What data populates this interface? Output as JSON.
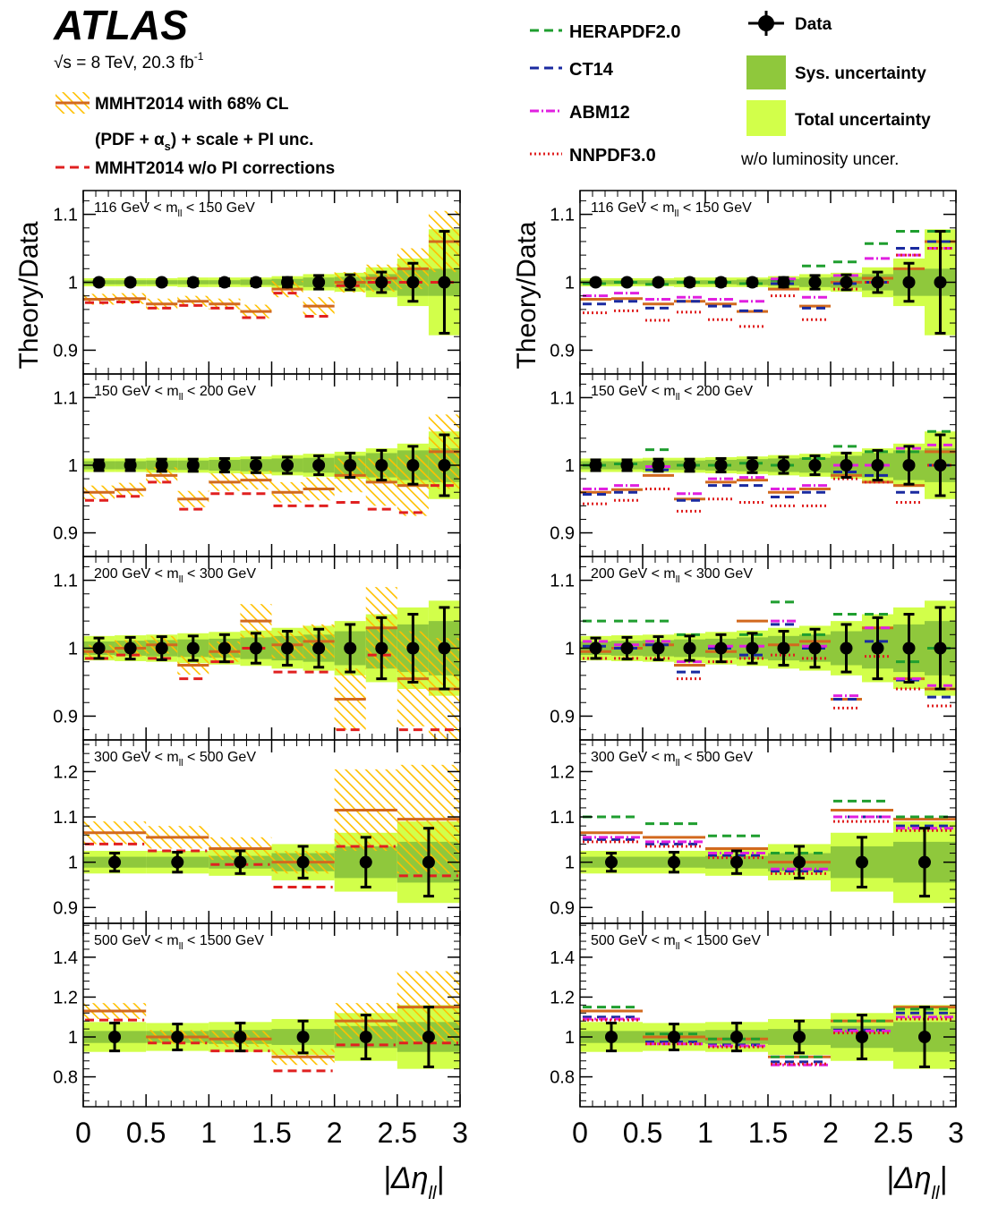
{
  "header": {
    "experiment": "ATLAS",
    "energy": "√s = 8 TeV, 20.3 fb",
    "energy_sup": "-1",
    "luminosity_note": "w/o luminosity uncer."
  },
  "legend_left": [
    {
      "label": "MMHT2014 with 68% CL",
      "style": "hatched-band"
    },
    {
      "label": "(PDF + α",
      "sub": "s",
      "tail": ") + scale + PI unc.",
      "style": "none"
    },
    {
      "label": "MMHT2014 w/o PI corrections",
      "style": "red-dashed"
    }
  ],
  "legend_right": {
    "lines": [
      {
        "label": "HERAPDF2.0",
        "color": "#1f9e2f",
        "dash": "10,6"
      },
      {
        "label": "CT14",
        "color": "#1a2aa0",
        "dash": "10,6"
      },
      {
        "label": "ABM12",
        "color": "#e020e0",
        "dash": "10,3,2,3"
      },
      {
        "label": "NNPDF3.0",
        "color": "#e02020",
        "dash": "2,3"
      }
    ],
    "boxes": [
      {
        "label": "Data",
        "kind": "marker"
      },
      {
        "label": "Sys. uncertainty",
        "color": "#8fc83c"
      },
      {
        "label": "Total uncertainty",
        "color": "#d2ff4a"
      }
    ]
  },
  "colors": {
    "mmht": "#d2691e",
    "hatch": "#ffc000",
    "red": "#e02020",
    "sys": "#8fc83c",
    "tot": "#d2ff4a",
    "data": "#000000"
  },
  "chart_data": {
    "type": "ratio-panels",
    "xlabel": "|Δη",
    "xlabel_sub": "ll",
    "ylabel": "Theory/Data",
    "xlim": [
      0,
      3
    ],
    "x_ticks": [
      "0",
      "0.5",
      "1",
      "1.5",
      "2",
      "2.5",
      "3"
    ],
    "x_tick_values": [
      0,
      0.5,
      1,
      1.5,
      2,
      2.5,
      3
    ],
    "panels": [
      {
        "label": "116 GeV < m",
        "label_sub": "ll",
        "label_tail": " < 150 GeV",
        "ylim": [
          0.865,
          1.135
        ],
        "y_ticks": [
          "0.9",
          "1",
          "1.1"
        ],
        "y_tick_values": [
          0.9,
          1.0,
          1.1
        ],
        "bins": [
          0,
          0.25,
          0.5,
          0.75,
          1,
          1.25,
          1.5,
          1.75,
          2,
          2.25,
          2.5,
          2.75,
          3
        ],
        "data_err": [
          0.004,
          0.004,
          0.004,
          0.005,
          0.005,
          0.005,
          0.007,
          0.01,
          0.011,
          0.015,
          0.028,
          0.075
        ],
        "sys": [
          0.003,
          0.003,
          0.003,
          0.003,
          0.003,
          0.004,
          0.005,
          0.007,
          0.008,
          0.012,
          0.02,
          0.02
        ],
        "tot": [
          0.006,
          0.006,
          0.006,
          0.007,
          0.007,
          0.007,
          0.009,
          0.012,
          0.014,
          0.022,
          0.035,
          0.078
        ],
        "mmht": [
          0.975,
          0.976,
          0.968,
          0.972,
          0.968,
          0.957,
          0.99,
          0.965,
          1.0,
          1.006,
          1.02,
          1.06
        ],
        "mmht_err": [
          0.008,
          0.008,
          0.008,
          0.008,
          0.008,
          0.01,
          0.012,
          0.013,
          0.015,
          0.02,
          0.03,
          0.045
        ],
        "red": [
          0.97,
          0.971,
          0.962,
          0.966,
          0.962,
          0.948,
          0.984,
          0.95,
          0.995,
          1.0,
          1.0,
          1.0
        ],
        "left_panel_only": true,
        "herapdf": [
          0.998,
          1.0,
          0.997,
          1.0,
          1.0,
          0.998,
          1.003,
          1.024,
          1.03,
          1.057,
          1.075,
          1.075
        ],
        "ct14": [
          0.968,
          0.972,
          0.962,
          0.972,
          0.965,
          0.958,
          0.998,
          0.962,
          0.998,
          1.0,
          1.05,
          1.06
        ],
        "abm12": [
          0.98,
          0.984,
          0.975,
          0.978,
          0.975,
          0.972,
          1.005,
          0.978,
          1.01,
          1.035,
          1.04,
          1.05
        ],
        "nnpdf": [
          0.955,
          0.958,
          0.944,
          0.956,
          0.945,
          0.935,
          0.98,
          0.945,
          0.99,
          1.0,
          1.04,
          1.05
        ]
      },
      {
        "label": "150 GeV < m",
        "label_sub": "ll",
        "label_tail": " < 200 GeV",
        "ylim": [
          0.865,
          1.135
        ],
        "y_ticks": [
          "0.9",
          "1",
          "1.1"
        ],
        "y_tick_values": [
          0.9,
          1.0,
          1.1
        ],
        "bins": [
          0,
          0.25,
          0.5,
          0.75,
          1,
          1.25,
          1.5,
          1.75,
          2,
          2.25,
          2.5,
          2.75,
          3
        ],
        "data_err": [
          0.008,
          0.008,
          0.009,
          0.009,
          0.01,
          0.011,
          0.012,
          0.014,
          0.018,
          0.022,
          0.028,
          0.045
        ],
        "sys": [
          0.006,
          0.006,
          0.007,
          0.007,
          0.008,
          0.009,
          0.01,
          0.011,
          0.014,
          0.018,
          0.022,
          0.025
        ],
        "tot": [
          0.01,
          0.01,
          0.011,
          0.011,
          0.012,
          0.013,
          0.015,
          0.017,
          0.02,
          0.025,
          0.032,
          0.05
        ],
        "mmht": [
          0.96,
          0.964,
          0.985,
          0.95,
          0.975,
          0.978,
          0.96,
          0.965,
          0.985,
          0.975,
          0.97,
          1.02
        ],
        "mmht_err": [
          0.01,
          0.01,
          0.012,
          0.012,
          0.013,
          0.014,
          0.015,
          0.017,
          0.025,
          0.035,
          0.045,
          0.055
        ],
        "red": [
          0.948,
          0.954,
          0.975,
          0.935,
          0.958,
          0.958,
          0.94,
          0.94,
          0.945,
          0.935,
          0.93,
          0.97
        ],
        "herapdf": [
          1.0,
          1.002,
          1.023,
          1.0,
          1.0,
          1.003,
          1.0,
          1.01,
          1.028,
          1.02,
          1.02,
          1.05
        ],
        "ct14": [
          0.957,
          0.96,
          0.993,
          0.948,
          0.97,
          0.97,
          0.953,
          0.96,
          0.99,
          0.985,
          0.96,
          1.0
        ],
        "abm12": [
          0.965,
          0.97,
          0.998,
          0.958,
          0.98,
          0.982,
          0.965,
          0.97,
          1.0,
          1.0,
          1.025,
          1.03
        ],
        "nnpdf": [
          0.943,
          0.948,
          0.965,
          0.932,
          0.95,
          0.945,
          0.94,
          0.94,
          0.98,
          0.975,
          0.945,
          1.0
        ]
      },
      {
        "label": "200 GeV < m",
        "label_sub": "ll",
        "label_tail": " < 300 GeV",
        "ylim": [
          0.865,
          1.135
        ],
        "y_ticks": [
          "0.9",
          "1",
          "1.1"
        ],
        "y_tick_values": [
          0.9,
          1.0,
          1.1
        ],
        "bins": [
          0,
          0.25,
          0.5,
          0.75,
          1,
          1.25,
          1.5,
          1.75,
          2,
          2.25,
          2.5,
          2.75,
          3
        ],
        "data_err": [
          0.015,
          0.016,
          0.017,
          0.018,
          0.02,
          0.022,
          0.025,
          0.028,
          0.035,
          0.045,
          0.05,
          0.06
        ],
        "sys": [
          0.01,
          0.011,
          0.012,
          0.013,
          0.014,
          0.016,
          0.018,
          0.02,
          0.025,
          0.03,
          0.035,
          0.04
        ],
        "tot": [
          0.018,
          0.019,
          0.02,
          0.022,
          0.024,
          0.026,
          0.03,
          0.033,
          0.04,
          0.05,
          0.06,
          0.07
        ],
        "mmht": [
          0.995,
          1.0,
          1.005,
          0.975,
          0.995,
          1.04,
          1.005,
          1.01,
          0.925,
          1.03,
          0.955,
          0.94
        ],
        "mmht_err": [
          0.01,
          0.012,
          0.013,
          0.014,
          0.015,
          0.025,
          0.02,
          0.025,
          0.045,
          0.06,
          0.07,
          0.075
        ],
        "red": [
          0.985,
          0.99,
          0.985,
          0.955,
          0.98,
          1.0,
          0.965,
          0.965,
          0.88,
          0.99,
          0.88,
          0.88
        ],
        "herapdf": [
          1.04,
          1.04,
          1.04,
          1.02,
          1.0,
          1.02,
          1.068,
          1.02,
          1.05,
          1.05,
          0.98,
          1.0
        ],
        "ct14": [
          1.003,
          1.0,
          1.005,
          0.965,
          1.0,
          0.99,
          1.035,
          1.0,
          0.925,
          1.01,
          0.953,
          0.928
        ],
        "abm12": [
          1.01,
          1.005,
          1.01,
          0.98,
          1.003,
          1.003,
          1.04,
          1.003,
          0.93,
          1.03,
          0.955,
          0.945
        ],
        "nnpdf": [
          0.985,
          0.985,
          0.985,
          0.955,
          0.98,
          0.985,
          0.99,
          0.985,
          0.912,
          0.988,
          0.94,
          0.915
        ]
      },
      {
        "label": "300 GeV < m",
        "label_sub": "ll",
        "label_tail": " < 500 GeV",
        "ylim": [
          0.865,
          1.27
        ],
        "y_ticks": [
          "0.9",
          "1",
          "1.1",
          "1.2"
        ],
        "y_tick_values": [
          0.9,
          1.0,
          1.1,
          1.2
        ],
        "bins": [
          0,
          0.5,
          1,
          1.5,
          2,
          2.5,
          3
        ],
        "data_err": [
          0.02,
          0.022,
          0.025,
          0.035,
          0.055,
          0.075
        ],
        "sys": [
          0.012,
          0.012,
          0.014,
          0.02,
          0.035,
          0.045
        ],
        "tot": [
          0.025,
          0.025,
          0.03,
          0.04,
          0.065,
          0.09
        ],
        "mmht": [
          1.065,
          1.055,
          1.03,
          1.0,
          1.115,
          1.095
        ],
        "mmht_err": [
          0.025,
          0.025,
          0.025,
          0.025,
          0.09,
          0.12
        ],
        "red": [
          1.04,
          1.025,
          0.995,
          0.945,
          1.035,
          0.97
        ],
        "herapdf": [
          1.1,
          1.085,
          1.058,
          1.02,
          1.135,
          1.1
        ],
        "ct14": [
          1.05,
          1.04,
          1.015,
          0.98,
          1.1,
          1.08
        ],
        "abm12": [
          1.055,
          1.045,
          1.02,
          0.985,
          1.1,
          1.075
        ],
        "nnpdf": [
          1.045,
          1.035,
          1.01,
          0.975,
          1.09,
          1.07
        ]
      },
      {
        "label": "500 GeV < m",
        "label_sub": "ll",
        "label_tail": " < 1500 GeV",
        "ylim": [
          0.65,
          1.57
        ],
        "y_ticks": [
          "0.8",
          "1",
          "1.2",
          "1.4"
        ],
        "y_tick_values": [
          0.8,
          1.0,
          1.2,
          1.4
        ],
        "bins": [
          0,
          0.5,
          1,
          1.5,
          2,
          2.5,
          3
        ],
        "data_err": [
          0.07,
          0.065,
          0.07,
          0.08,
          0.11,
          0.15
        ],
        "sys": [
          0.03,
          0.03,
          0.035,
          0.04,
          0.055,
          0.075
        ],
        "tot": [
          0.075,
          0.07,
          0.075,
          0.09,
          0.12,
          0.16
        ],
        "mmht": [
          1.13,
          1.0,
          0.99,
          0.9,
          1.08,
          1.15
        ],
        "mmht_err": [
          0.04,
          0.035,
          0.04,
          0.04,
          0.09,
          0.18
        ],
        "red": [
          1.085,
          0.97,
          0.93,
          0.83,
          0.96,
          0.97
        ],
        "herapdf": [
          1.15,
          1.015,
          0.99,
          0.9,
          1.08,
          1.14
        ],
        "ct14": [
          1.1,
          0.975,
          0.96,
          0.875,
          1.035,
          1.12
        ],
        "abm12": [
          1.09,
          0.965,
          0.955,
          0.86,
          1.03,
          1.1
        ],
        "nnpdf": [
          1.085,
          0.965,
          0.95,
          0.865,
          1.02,
          1.09
        ]
      }
    ]
  }
}
